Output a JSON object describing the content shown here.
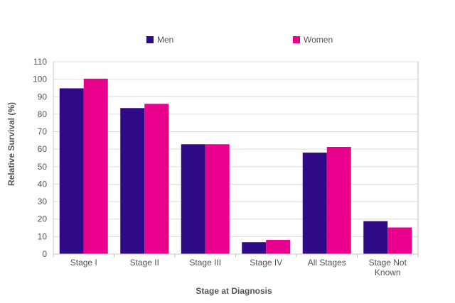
{
  "chart_data": {
    "type": "bar",
    "title": "",
    "xlabel": "Stage at Diagnosis",
    "ylabel": "Relative Survival (%)",
    "ylim": [
      0,
      110
    ],
    "yticks": [
      0,
      10,
      20,
      30,
      40,
      50,
      60,
      70,
      80,
      90,
      100,
      110
    ],
    "categories": [
      [
        "Stage I"
      ],
      [
        "Stage II"
      ],
      [
        "Stage III"
      ],
      [
        "Stage IV"
      ],
      [
        "All Stages"
      ],
      [
        "Stage Not",
        "Known"
      ]
    ],
    "series": [
      {
        "name": "Men",
        "color": "#2e0a87",
        "values": [
          94.8,
          83.5,
          62.8,
          6.8,
          58.0,
          18.8
        ]
      },
      {
        "name": "Women",
        "color": "#e8008c",
        "values": [
          100.3,
          85.9,
          62.8,
          8.1,
          61.3,
          15.2
        ]
      }
    ],
    "grid": true,
    "legend": "top"
  }
}
